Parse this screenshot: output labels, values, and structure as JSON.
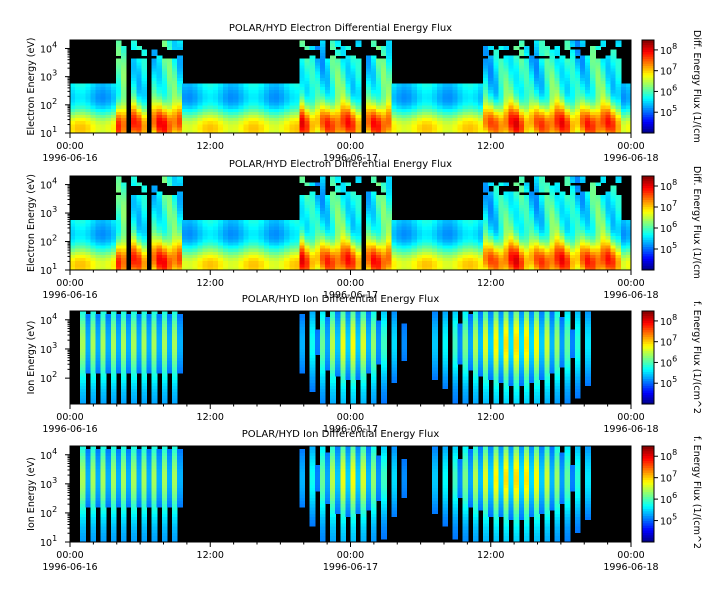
{
  "figure": {
    "colors": {
      "background": "#000000",
      "colormap": [
        "#00007f",
        "#0000ff",
        "#007fff",
        "#00ffff",
        "#7fff7f",
        "#ffff00",
        "#ff7f00",
        "#ff0000",
        "#7f0000"
      ]
    }
  },
  "chart_data": [
    {
      "type": "heatmap",
      "title": "POLAR/HYD  Electron Differential Energy Flux",
      "ylabel": "Electron Energy (eV)",
      "yscale": "log",
      "ylim": [
        10,
        20000
      ],
      "y_ticks": [
        {
          "label": "10",
          "exp": "1",
          "value": 10
        },
        {
          "label": "10",
          "exp": "2",
          "value": 100
        },
        {
          "label": "10",
          "exp": "3",
          "value": 1000
        },
        {
          "label": "10",
          "exp": "4",
          "value": 10000
        }
      ],
      "x_ticks": [
        {
          "line1": "00:00",
          "line2": "1996-06-16",
          "hours": 0
        },
        {
          "line1": "12:00",
          "line2": "",
          "hours": 12
        },
        {
          "line1": "00:00",
          "line2": "1996-06-17",
          "hours": 24
        },
        {
          "line1": "12:00",
          "line2": "",
          "hours": 36
        },
        {
          "line1": "00:00",
          "line2": "1996-06-18",
          "hours": 48
        }
      ],
      "xlim_hours": [
        0,
        48
      ],
      "colorbar": {
        "label": "Diff. Energy Flux (1/(cm",
        "scale": "log",
        "range": [
          10000,
          300000000
        ],
        "ticks": [
          {
            "label": "10",
            "exp": "5",
            "value": 100000
          },
          {
            "label": "10",
            "exp": "6",
            "value": 1000000
          },
          {
            "label": "10",
            "exp": "7",
            "value": 10000000
          },
          {
            "label": "10",
            "exp": "8",
            "value": 100000000
          }
        ]
      },
      "model": {
        "kind": "electron"
      }
    },
    {
      "type": "heatmap",
      "title": "POLAR/HYD  Electron Differential Energy Flux",
      "ylabel": "Electron Energy (eV)",
      "yscale": "log",
      "ylim": [
        10,
        20000
      ],
      "y_ticks": [
        {
          "label": "10",
          "exp": "1",
          "value": 10
        },
        {
          "label": "10",
          "exp": "2",
          "value": 100
        },
        {
          "label": "10",
          "exp": "3",
          "value": 1000
        },
        {
          "label": "10",
          "exp": "4",
          "value": 10000
        }
      ],
      "x_ticks": [
        {
          "line1": "00:00",
          "line2": "1996-06-16",
          "hours": 0
        },
        {
          "line1": "12:00",
          "line2": "",
          "hours": 12
        },
        {
          "line1": "00:00",
          "line2": "1996-06-17",
          "hours": 24
        },
        {
          "line1": "12:00",
          "line2": "",
          "hours": 36
        },
        {
          "line1": "00:00",
          "line2": "1996-06-18",
          "hours": 48
        }
      ],
      "xlim_hours": [
        0,
        48
      ],
      "colorbar": {
        "label": "Diff. Energy Flux (1/(cm",
        "scale": "log",
        "range": [
          10000,
          300000000
        ],
        "ticks": [
          {
            "label": "10",
            "exp": "5",
            "value": 100000
          },
          {
            "label": "10",
            "exp": "6",
            "value": 1000000
          },
          {
            "label": "10",
            "exp": "7",
            "value": 10000000
          },
          {
            "label": "10",
            "exp": "8",
            "value": 100000000
          }
        ]
      },
      "model": {
        "kind": "electron"
      }
    },
    {
      "type": "heatmap",
      "title": "POLAR/HYD  Ion Differential Energy Flux",
      "ylabel": "Ion Energy (eV)",
      "yscale": "log",
      "ylim": [
        13,
        20000
      ],
      "y_ticks": [
        {
          "label": "10",
          "exp": "2",
          "value": 100
        },
        {
          "label": "10",
          "exp": "3",
          "value": 1000
        },
        {
          "label": "10",
          "exp": "4",
          "value": 10000
        }
      ],
      "x_ticks": [
        {
          "line1": "00:00",
          "line2": "1996-06-16",
          "hours": 0
        },
        {
          "line1": "12:00",
          "line2": "",
          "hours": 12
        },
        {
          "line1": "00:00",
          "line2": "1996-06-17",
          "hours": 24
        },
        {
          "line1": "12:00",
          "line2": "",
          "hours": 36
        },
        {
          "line1": "00:00",
          "line2": "1996-06-18",
          "hours": 48
        }
      ],
      "xlim_hours": [
        0,
        48
      ],
      "colorbar": {
        "label": "f. Energy Flux (1/(cm^2",
        "scale": "log",
        "range": [
          10000,
          300000000
        ],
        "ticks": [
          {
            "label": "10",
            "exp": "5",
            "value": 100000
          },
          {
            "label": "10",
            "exp": "6",
            "value": 1000000
          },
          {
            "label": "10",
            "exp": "7",
            "value": 10000000
          },
          {
            "label": "10",
            "exp": "8",
            "value": 100000000
          }
        ]
      },
      "model": {
        "kind": "ion"
      }
    },
    {
      "type": "heatmap",
      "title": "POLAR/HYD  Ion Differential Energy Flux",
      "ylabel": "Ion Energy (eV)",
      "yscale": "log",
      "ylim": [
        10,
        20000
      ],
      "y_ticks": [
        {
          "label": "10",
          "exp": "1",
          "value": 10
        },
        {
          "label": "10",
          "exp": "2",
          "value": 100
        },
        {
          "label": "10",
          "exp": "3",
          "value": 1000
        },
        {
          "label": "10",
          "exp": "4",
          "value": 10000
        }
      ],
      "x_ticks": [
        {
          "line1": "00:00",
          "line2": "1996-06-16",
          "hours": 0
        },
        {
          "line1": "12:00",
          "line2": "",
          "hours": 12
        },
        {
          "line1": "00:00",
          "line2": "1996-06-17",
          "hours": 24
        },
        {
          "line1": "12:00",
          "line2": "",
          "hours": 36
        },
        {
          "line1": "00:00",
          "line2": "1996-06-18",
          "hours": 48
        }
      ],
      "xlim_hours": [
        0,
        48
      ],
      "colorbar": {
        "label": "f. Energy Flux (1/(cm^2",
        "scale": "log",
        "range": [
          10000,
          300000000
        ],
        "ticks": [
          {
            "label": "10",
            "exp": "5",
            "value": 100000
          },
          {
            "label": "10",
            "exp": "6",
            "value": 1000000
          },
          {
            "label": "10",
            "exp": "7",
            "value": 10000000
          },
          {
            "label": "10",
            "exp": "8",
            "value": 100000000
          }
        ]
      },
      "model": {
        "kind": "ion"
      }
    }
  ]
}
